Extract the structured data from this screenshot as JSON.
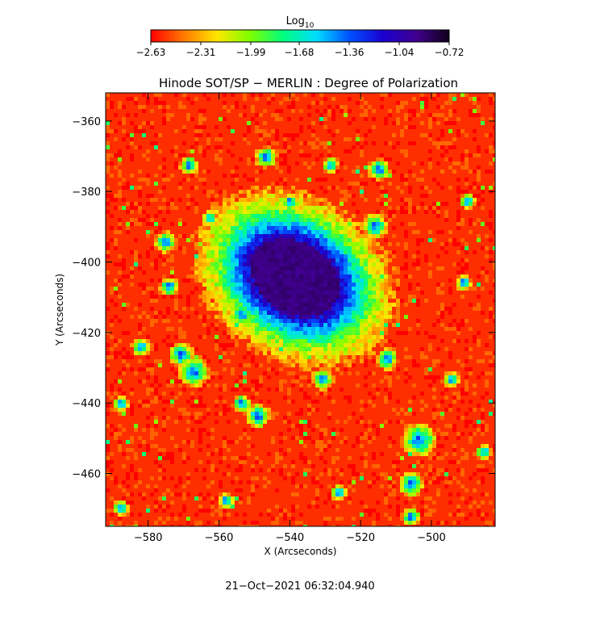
{
  "chart_data": {
    "type": "heatmap",
    "title": "Hinode SOT/SP − MERLIN : Degree of Polarization",
    "xlabel": "X (Arcseconds)",
    "ylabel": "Y (Arcseconds)",
    "xlim": [
      -592,
      -482
    ],
    "ylim": [
      -475,
      -352
    ],
    "x_ticks": [
      -580,
      -560,
      -540,
      -520,
      -500
    ],
    "y_ticks": [
      -360,
      -380,
      -400,
      -420,
      -440,
      -460
    ],
    "colorbar": {
      "label_base": "Log",
      "label_sub": "10",
      "ticks": [
        -2.63,
        -2.31,
        -1.99,
        -1.68,
        -1.36,
        -1.04,
        -0.72
      ],
      "range": [
        -2.63,
        -0.72
      ],
      "colormap": [
        "#ff0000",
        "#ff7a00",
        "#ffe600",
        "#7dff00",
        "#00ff80",
        "#00dcff",
        "#0050ff",
        "#1a00d0",
        "#400090",
        "#100018"
      ]
    },
    "features": [
      {
        "kind": "sunspot",
        "x": -538.5,
        "y": -404.5,
        "value": -0.9
      }
    ],
    "background_value": -2.55,
    "timestamp": "21−Oct−2021 06:32:04.940"
  }
}
